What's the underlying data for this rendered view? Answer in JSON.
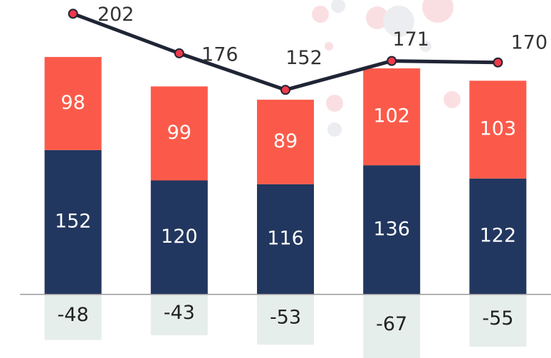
{
  "chart_data": {
    "type": "stacked-bar-line",
    "series": [
      {
        "color": "#22375f",
        "values": [
          152,
          120,
          116,
          136,
          122
        ]
      },
      {
        "color": "#fb5a4a",
        "values": [
          98,
          99,
          89,
          102,
          103
        ]
      },
      {
        "color": "#e6eeec",
        "values": [
          -48,
          -43,
          -53,
          -67,
          -55
        ]
      },
      {
        "color": "#1f2535",
        "marker_color": "#f0394a",
        "axis": "y2",
        "values": [
          202,
          176,
          152,
          171,
          170
        ]
      }
    ],
    "ylim": [
      -67,
      310
    ],
    "y2lim": [
      -24,
      211
    ]
  }
}
